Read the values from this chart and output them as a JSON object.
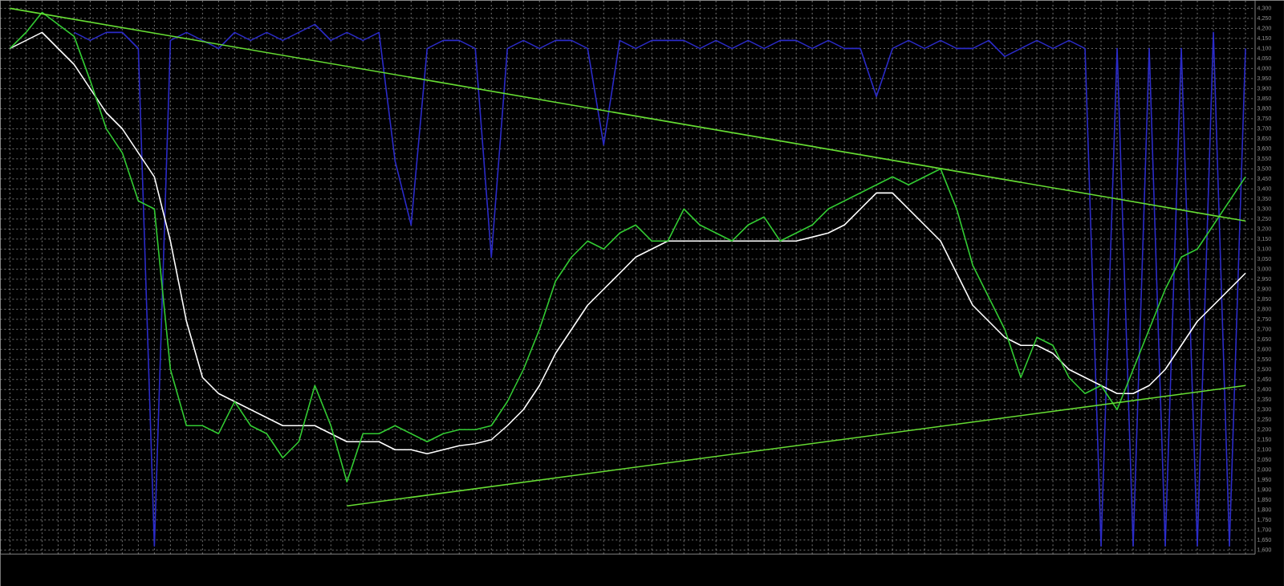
{
  "chart_data": {
    "type": "line",
    "categories": [
      null,
      null,
      null,
      null,
      null,
      null,
      null,
      null,
      null,
      null,
      null,
      null,
      null,
      null,
      null,
      null,
      null,
      null,
      null,
      null,
      null,
      null,
      null,
      null,
      null,
      null,
      null,
      null,
      null,
      null,
      null,
      null,
      null,
      null,
      null,
      null,
      null,
      null,
      null,
      null,
      null,
      null,
      null,
      null,
      null,
      null,
      null,
      null,
      null,
      null,
      null,
      null,
      null,
      null,
      null,
      null,
      null,
      null,
      null,
      null,
      null,
      null,
      null,
      null,
      null,
      null,
      null,
      null,
      null,
      null,
      null,
      null,
      null,
      null,
      null,
      null,
      null,
      null
    ],
    "series": [
      {
        "color": "#2b2bc8",
        "values": [
          null,
          null,
          null,
          null,
          4180,
          4140,
          4180,
          4180,
          4100,
          1620,
          4140,
          4180,
          4140,
          4100,
          4180,
          4140,
          4180,
          4140,
          4180,
          4220,
          4140,
          4180,
          4140,
          4180,
          3540,
          3220,
          4100,
          4140,
          4140,
          4100,
          3060,
          4100,
          4140,
          4100,
          4140,
          4140,
          4100,
          3620,
          4140,
          4100,
          4140,
          4140,
          4140,
          4100,
          4140,
          4100,
          4140,
          4100,
          4140,
          4140,
          4100,
          4140,
          4100,
          4100,
          3860,
          4100,
          4140,
          4100,
          4140,
          4100,
          4100,
          4140,
          4060,
          4100,
          4140,
          4100,
          4140,
          4100,
          1620,
          4100,
          1620,
          4100,
          1620,
          4100,
          1620,
          4180,
          1620,
          4100
        ]
      },
      {
        "color": "#ffffff",
        "values": [
          4100,
          4140,
          4180,
          4100,
          4020,
          3900,
          3780,
          3700,
          3580,
          3460,
          3140,
          2740,
          2460,
          2380,
          2340,
          2300,
          2260,
          2220,
          2220,
          2220,
          2180,
          2140,
          2140,
          2140,
          2100,
          2100,
          2080,
          2100,
          2120,
          2130,
          2150,
          2220,
          2300,
          2420,
          2580,
          2700,
          2820,
          2900,
          2980,
          3060,
          3100,
          3140,
          3140,
          3140,
          3140,
          3140,
          3140,
          3140,
          3140,
          3140,
          3160,
          3180,
          3220,
          3300,
          3380,
          3380,
          3300,
          3220,
          3140,
          2980,
          2820,
          2740,
          2660,
          2620,
          2620,
          2580,
          2500,
          2460,
          2420,
          2380,
          2380,
          2420,
          2500,
          2620,
          2740,
          2820,
          2900,
          2980
        ]
      },
      {
        "color": "#33cc33",
        "values": [
          4100,
          4180,
          4280,
          4220,
          4160,
          3940,
          3700,
          3580,
          3340,
          3300,
          2500,
          2220,
          2220,
          2180,
          2340,
          2220,
          2180,
          2060,
          2140,
          2420,
          2220,
          1940,
          2180,
          2180,
          2220,
          2180,
          2140,
          2180,
          2200,
          2200,
          2220,
          2340,
          2500,
          2700,
          2940,
          3060,
          3140,
          3100,
          3180,
          3220,
          3140,
          3140,
          3300,
          3220,
          3180,
          3140,
          3220,
          3260,
          3140,
          3180,
          3220,
          3300,
          3340,
          3380,
          3420,
          3460,
          3420,
          3460,
          3500,
          3300,
          3020,
          2860,
          2700,
          2460,
          2660,
          2620,
          2460,
          2380,
          2420,
          2300,
          2500,
          2700,
          2900,
          3060,
          3100,
          3220,
          3340,
          3460
        ]
      },
      {
        "color": "#66dd33",
        "values": [
          4300,
          null,
          null,
          null,
          null,
          null,
          null,
          null,
          null,
          null,
          null,
          null,
          null,
          null,
          null,
          null,
          null,
          null,
          null,
          null,
          null,
          null,
          null,
          null,
          null,
          null,
          null,
          null,
          null,
          null,
          null,
          null,
          null,
          null,
          null,
          null,
          null,
          null,
          null,
          null,
          null,
          null,
          null,
          null,
          null,
          null,
          null,
          null,
          null,
          null,
          null,
          null,
          null,
          null,
          null,
          null,
          null,
          null,
          null,
          null,
          null,
          null,
          null,
          null,
          null,
          null,
          null,
          null,
          null,
          null,
          null,
          null,
          null,
          null,
          null,
          null,
          null,
          3240
        ]
      },
      {
        "color": "#66dd33",
        "values": [
          null,
          null,
          null,
          null,
          null,
          null,
          null,
          null,
          null,
          null,
          null,
          null,
          null,
          null,
          null,
          null,
          null,
          null,
          null,
          null,
          null,
          1820,
          null,
          null,
          null,
          null,
          null,
          null,
          null,
          null,
          null,
          null,
          null,
          null,
          null,
          null,
          null,
          null,
          null,
          null,
          null,
          null,
          null,
          null,
          null,
          null,
          null,
          null,
          null,
          null,
          null,
          null,
          null,
          null,
          null,
          null,
          null,
          null,
          null,
          null,
          null,
          null,
          null,
          null,
          null,
          null,
          null,
          null,
          null,
          null,
          null,
          null,
          null,
          null,
          null,
          null,
          null,
          2420
        ]
      }
    ],
    "ylim": [
      1580,
      4340
    ],
    "yticks": [
      {
        "value": 1600,
        "label": "1,600"
      },
      {
        "value": 1650,
        "label": "1,650"
      },
      {
        "value": 1700,
        "label": "1,700"
      },
      {
        "value": 1750,
        "label": "1,750"
      },
      {
        "value": 1800,
        "label": "1,800"
      },
      {
        "value": 1850,
        "label": "1,850"
      },
      {
        "value": 1900,
        "label": "1,900"
      },
      {
        "value": 1950,
        "label": "1,950"
      },
      {
        "value": 2000,
        "label": "2,000"
      },
      {
        "value": 2050,
        "label": "2,050"
      },
      {
        "value": 2100,
        "label": "2,100"
      },
      {
        "value": 2150,
        "label": "2,150"
      },
      {
        "value": 2200,
        "label": "2,200"
      },
      {
        "value": 2250,
        "label": "2,250"
      },
      {
        "value": 2300,
        "label": "2,300"
      },
      {
        "value": 2350,
        "label": "2,350"
      },
      {
        "value": 2400,
        "label": "2,400"
      },
      {
        "value": 2450,
        "label": "2,450"
      },
      {
        "value": 2500,
        "label": "2,500"
      },
      {
        "value": 2550,
        "label": "2,550"
      },
      {
        "value": 2600,
        "label": "2,600"
      },
      {
        "value": 2650,
        "label": "2,650"
      },
      {
        "value": 2700,
        "label": "2,700"
      },
      {
        "value": 2750,
        "label": "2,750"
      },
      {
        "value": 2800,
        "label": "2,800"
      },
      {
        "value": 2850,
        "label": "2,850"
      },
      {
        "value": 2900,
        "label": "2,900"
      },
      {
        "value": 2950,
        "label": "2,950"
      },
      {
        "value": 3000,
        "label": "3,000"
      },
      {
        "value": 3050,
        "label": "3,050"
      },
      {
        "value": 3100,
        "label": "3,100"
      },
      {
        "value": 3150,
        "label": "3,150"
      },
      {
        "value": 3200,
        "label": "3,200"
      },
      {
        "value": 3250,
        "label": "3,250"
      },
      {
        "value": 3300,
        "label": "3,300"
      },
      {
        "value": 3350,
        "label": "3,350"
      },
      {
        "value": 3400,
        "label": "3,400"
      },
      {
        "value": 3450,
        "label": "3,450"
      },
      {
        "value": 3500,
        "label": "3,500"
      },
      {
        "value": 3550,
        "label": "3,550"
      },
      {
        "value": 3600,
        "label": "3,600"
      },
      {
        "value": 3650,
        "label": "3,650"
      },
      {
        "value": 3700,
        "label": "3,700"
      },
      {
        "value": 3750,
        "label": "3,750"
      },
      {
        "value": 3800,
        "label": "3,800"
      },
      {
        "value": 3850,
        "label": "3,850"
      },
      {
        "value": 3900,
        "label": "3,900"
      },
      {
        "value": 3950,
        "label": "3,950"
      },
      {
        "value": 4000,
        "label": "4,000"
      },
      {
        "value": 4050,
        "label": "4,050"
      },
      {
        "value": 4100,
        "label": "4,100"
      },
      {
        "value": 4150,
        "label": "4,150"
      },
      {
        "value": 4200,
        "label": "4,200"
      },
      {
        "value": 4250,
        "label": "4,250"
      },
      {
        "value": 4300,
        "label": "4,300"
      }
    ],
    "grid": true,
    "tick_labels": "y"
  }
}
